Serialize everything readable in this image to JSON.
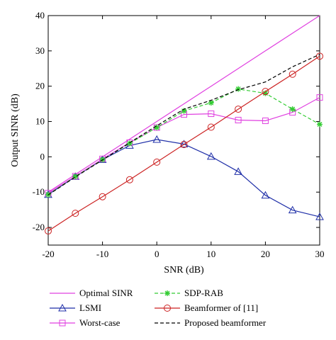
{
  "chart_data": {
    "type": "line",
    "title": "",
    "xlabel": "SNR (dB)",
    "ylabel": "Output SINR (dB)",
    "xlim": [
      -20,
      30
    ],
    "ylim": [
      -25,
      40
    ],
    "xticks": [
      -20,
      -10,
      0,
      10,
      20,
      30
    ],
    "yticks": [
      -20,
      -10,
      0,
      10,
      20,
      30,
      40
    ],
    "grid": false,
    "legend_position": "below plot, two columns",
    "x": [
      -20,
      -15,
      -10,
      -5,
      0,
      5,
      10,
      15,
      20,
      25,
      30
    ],
    "series": [
      {
        "name": "Optimal SINR",
        "color": "#e040e0",
        "dash": "solid",
        "marker": "none",
        "values": [
          -10,
          -5,
          0,
          5,
          10,
          15,
          20,
          25,
          30,
          35,
          40
        ]
      },
      {
        "name": "LSMI",
        "color": "#1f2fa8",
        "dash": "solid",
        "marker": "triangle",
        "values": [
          -10.7,
          -5.6,
          -0.8,
          3.2,
          4.9,
          3.6,
          0.1,
          -4.2,
          -10.9,
          -15.1,
          -17.0
        ]
      },
      {
        "name": "Worst-case",
        "color": "#e040e0",
        "dash": "solid",
        "marker": "square",
        "values": [
          -10.3,
          -5.5,
          -0.6,
          4.0,
          8.3,
          12.0,
          12.2,
          10.4,
          10.2,
          12.6,
          16.8
        ]
      },
      {
        "name": "SDP-RAB",
        "color": "#33cc33",
        "dash": "dashed",
        "marker": "star",
        "values": [
          -10.7,
          -5.6,
          -0.8,
          3.8,
          8.3,
          13.0,
          15.3,
          19.2,
          18.0,
          13.5,
          9.2
        ]
      },
      {
        "name": "Beamformer of [11]",
        "color": "#cc2222",
        "dash": "solid",
        "marker": "circle",
        "values": [
          -21.0,
          -16.0,
          -11.3,
          -6.5,
          -1.5,
          3.5,
          8.4,
          13.5,
          18.5,
          23.4,
          28.5
        ]
      },
      {
        "name": "Proposed beamformer",
        "color": "#000000",
        "dash": "dashed",
        "marker": "none",
        "values": [
          -10.8,
          -5.7,
          -0.9,
          4.0,
          8.8,
          13.5,
          16.0,
          19.0,
          21.2,
          25.5,
          29.0
        ]
      }
    ]
  }
}
